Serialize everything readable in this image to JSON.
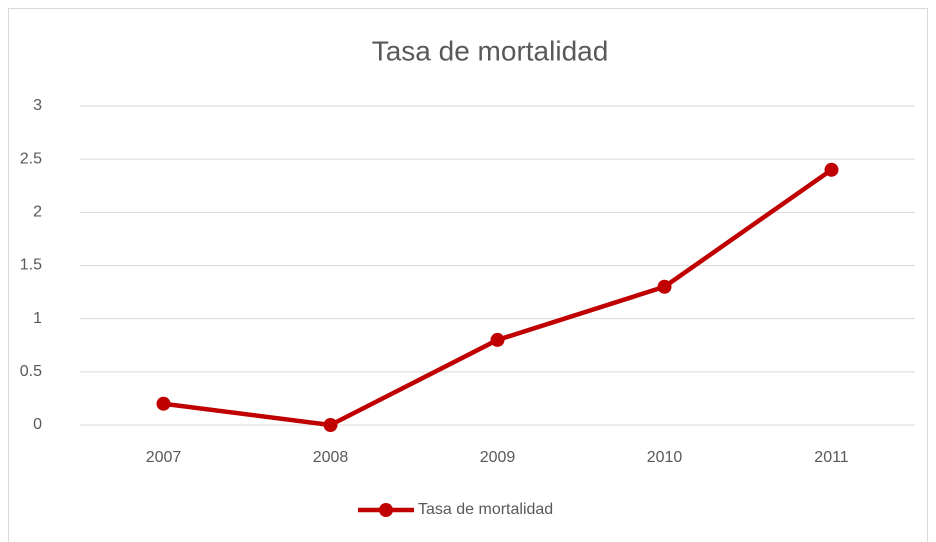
{
  "chart_data": {
    "type": "line",
    "title": "Tasa de mortalidad",
    "categories": [
      "2007",
      "2008",
      "2009",
      "2010",
      "2011"
    ],
    "series": [
      {
        "name": "Tasa de mortalidad",
        "color": "#c00000",
        "values": [
          0.2,
          0,
          0.8,
          1.3,
          2.4
        ]
      }
    ],
    "ylim": [
      0,
      3
    ],
    "yticks": [
      0,
      0.5,
      1,
      1.5,
      2,
      2.5,
      3
    ],
    "grid": true,
    "legend": "bottom"
  }
}
